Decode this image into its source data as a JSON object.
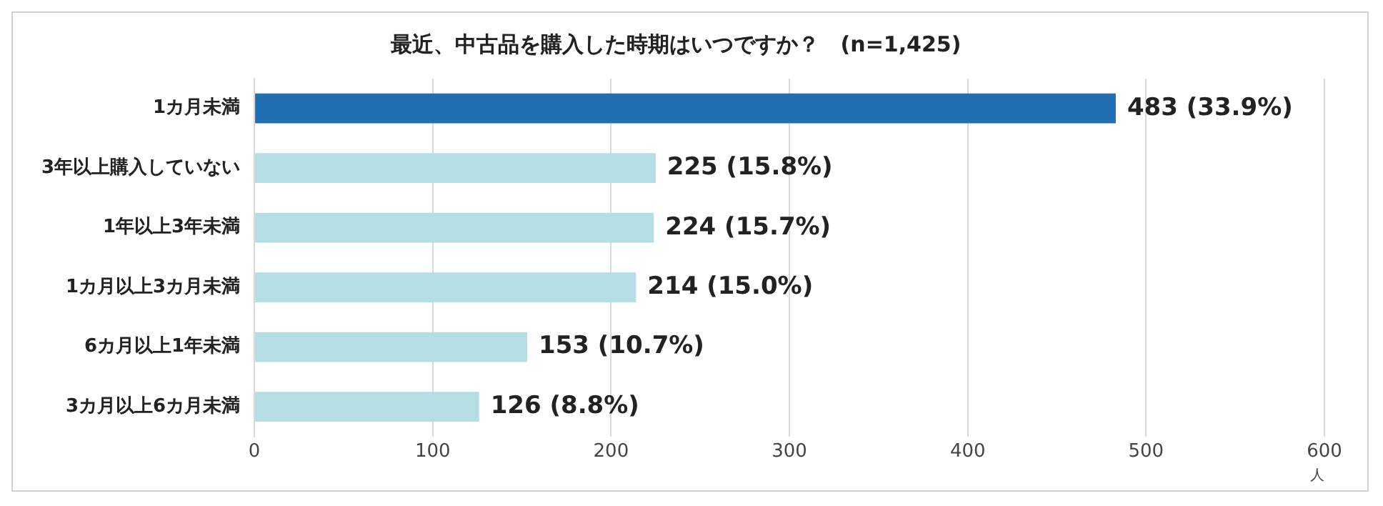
{
  "chart_data": {
    "type": "bar",
    "orientation": "horizontal",
    "title": "最近、中古品を購入した時期はいつですか？　(n=1,425)",
    "xlabel": "人",
    "categories": [
      "1カ月未満",
      "3年以上購入していない",
      "1年以上3年未満",
      "1カ月以上3カ月未満",
      "6カ月以上1年未満",
      "3カ月以上6カ月未満"
    ],
    "values": [
      483,
      225,
      224,
      214,
      153,
      126
    ],
    "colors": [
      "#1f6fb2",
      "#b5dde4",
      "#b5dde4",
      "#b5dde4",
      "#b5dde4",
      "#b5dde4"
    ],
    "value_labels": [
      "483 (33.9%)",
      "225 (15.8%)",
      "224 (15.7%)",
      "214 (15.0%)",
      "153 (10.7%)",
      "126 (8.8%)"
    ],
    "xlim": [
      0,
      600
    ],
    "xticks": [
      0,
      100,
      200,
      300,
      400,
      500,
      600
    ],
    "grid": "x"
  }
}
